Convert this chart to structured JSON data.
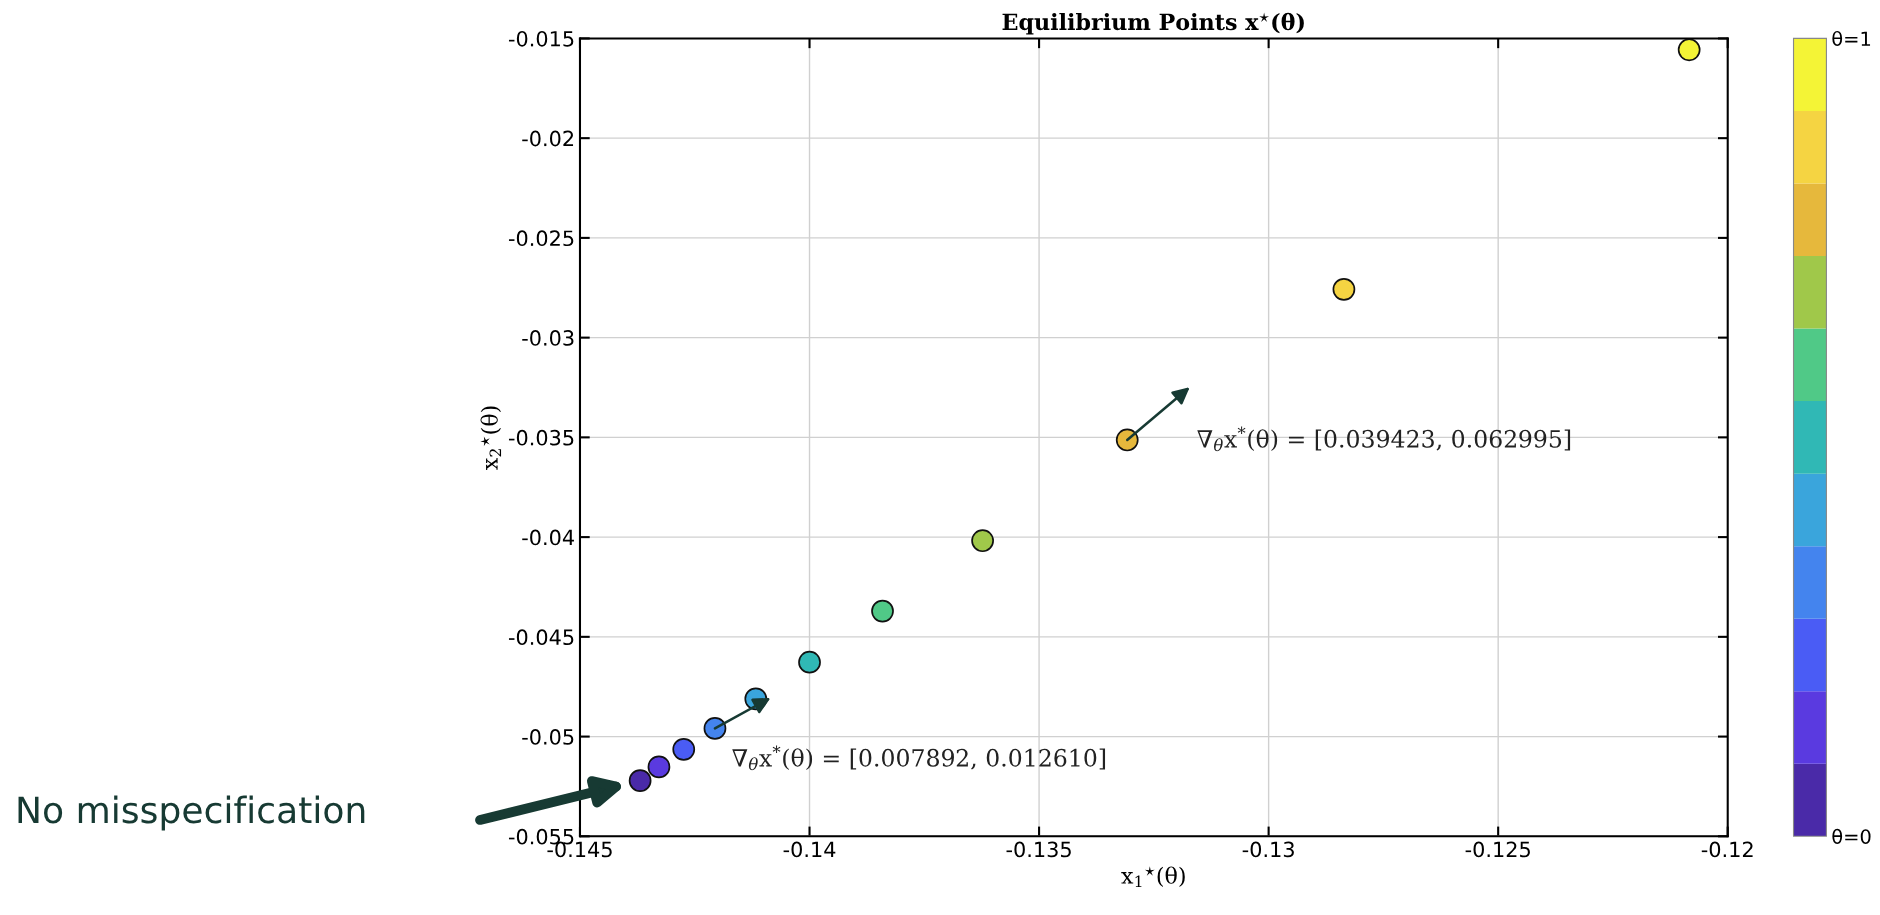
{
  "chart_data": {
    "type": "scatter",
    "title": "Equilibrium Points x$^{⋆}$(θ)",
    "xlabel": "x$_{1}$$^{⋆}$(θ)",
    "ylabel": "x$_{2}$$^{⋆}$(θ)",
    "x": [
      -0.14369,
      -0.14328,
      -0.14274,
      -0.14206,
      -0.14117,
      -0.14,
      -0.13841,
      -0.13623,
      -0.13308,
      -0.12836,
      -0.12084
    ],
    "series": [
      {
        "values": [
          -0.05221,
          -0.05152,
          -0.05064,
          -0.04959,
          -0.04811,
          -0.04627,
          -0.04371,
          -0.04018,
          -0.03513,
          -0.02758,
          -0.01557
        ],
        "cvalues": [
          0,
          0.1,
          0.2,
          0.3,
          0.4,
          0.5,
          0.6,
          0.7,
          0.8,
          0.9,
          1
        ],
        "colors": [
          "#4a2aa8",
          "#5a3ae0",
          "#4a5cf5",
          "#4484ee",
          "#3aa5dc",
          "#30b8b5",
          "#50c987",
          "#a0c84a",
          "#e6b83c",
          "#f5d442",
          "#f4f436"
        ]
      }
    ],
    "marker": "circle",
    "clim": [
      0,
      1
    ],
    "cticks": [
      {
        "value": 0,
        "label": "θ=0"
      },
      {
        "value": 1,
        "label": "θ=1"
      }
    ],
    "xlim": [
      -0.145,
      -0.12
    ],
    "xticks": [
      -0.145,
      -0.14,
      -0.135,
      -0.13,
      -0.125,
      -0.12
    ],
    "ylim": [
      -0.055,
      -0.015
    ],
    "yticks": [
      -0.055,
      -0.05,
      -0.045,
      -0.04,
      -0.035,
      -0.03,
      -0.025,
      -0.02,
      -0.015
    ],
    "grid": true,
    "annotations": [
      {
        "text": "∇$_{θ}$x$^{*}$(θ) = [0.007892, 0.012610]",
        "x": -0.14206,
        "y": -0.04959
      },
      {
        "text": "∇$_{θ}$x$^{*}$(θ) = [0.039423, 0.062995]",
        "x": -0.13308,
        "y": -0.03513
      },
      "No misspecification"
    ]
  }
}
